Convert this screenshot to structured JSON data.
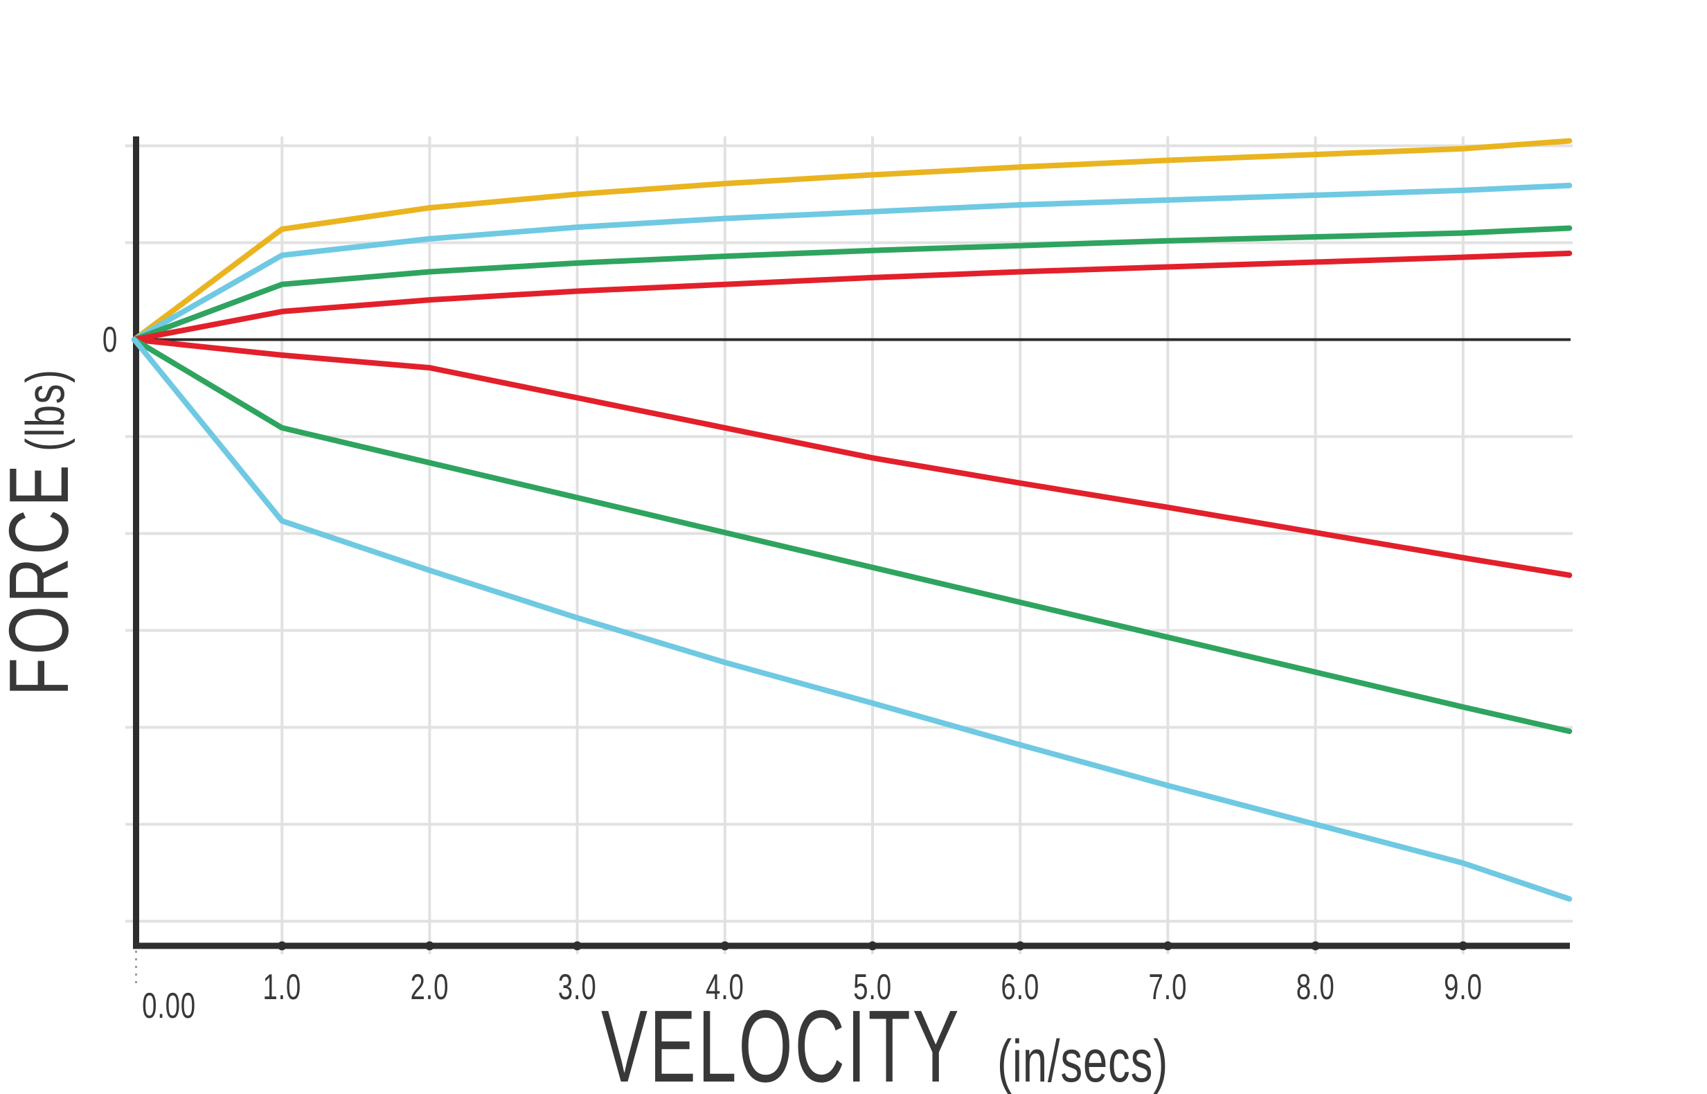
{
  "page": {
    "background": "#ffffff"
  },
  "chart_data": {
    "type": "line",
    "title": "",
    "xlabel": "VELOCITY",
    "xlabel_unit": "(in/secs)",
    "ylabel": "FORCE",
    "ylabel_unit": "(lbs)",
    "y_zero_label": "0",
    "origin_tick_label": "0.00",
    "x_tick_labels": [
      "1.0",
      "2.0",
      "3.0",
      "4.0",
      "5.0",
      "6.0",
      "7.0",
      "8.0",
      "9.0"
    ],
    "x_tick_values": [
      1,
      2,
      3,
      4,
      5,
      6,
      7,
      8,
      9
    ],
    "x_range": [
      0,
      9.72
    ],
    "y_range_grid_units": [
      -6.3,
      2.6
    ],
    "y_gridline_unit_values": [
      2,
      1,
      -1,
      -2,
      -3,
      -4,
      -5,
      -6
    ],
    "y_gridlines_labeled": false,
    "grid": true,
    "legend": false,
    "x": [
      0,
      1,
      2,
      3,
      4,
      5,
      6,
      7,
      8,
      9,
      9.72
    ],
    "series": [
      {
        "name": "yellow-upper",
        "color": "#E9B41F",
        "y": [
          0,
          1.14,
          1.36,
          1.5,
          1.61,
          1.7,
          1.78,
          1.85,
          1.91,
          1.97,
          2.05
        ]
      },
      {
        "name": "cyan-upper",
        "color": "#6FC9E2",
        "y": [
          0,
          0.87,
          1.04,
          1.16,
          1.25,
          1.32,
          1.39,
          1.44,
          1.49,
          1.54,
          1.59
        ]
      },
      {
        "name": "green-upper",
        "color": "#2EA45F",
        "y": [
          0,
          0.57,
          0.7,
          0.79,
          0.86,
          0.92,
          0.97,
          1.02,
          1.06,
          1.1,
          1.15
        ]
      },
      {
        "name": "red-upper",
        "color": "#E2202B",
        "y": [
          0,
          0.29,
          0.41,
          0.5,
          0.57,
          0.64,
          0.7,
          0.75,
          0.8,
          0.85,
          0.89
        ]
      },
      {
        "name": "red-lower",
        "color": "#E2202B",
        "y": [
          0,
          -0.16,
          -0.29,
          -0.6,
          -0.91,
          -1.22,
          -1.48,
          -1.73,
          -1.99,
          -2.25,
          -2.43
        ]
      },
      {
        "name": "green-lower",
        "color": "#2EA45F",
        "y": [
          0,
          -0.91,
          -1.27,
          -1.63,
          -1.99,
          -2.35,
          -2.71,
          -3.07,
          -3.43,
          -3.79,
          -4.04
        ]
      },
      {
        "name": "cyan-lower",
        "color": "#6FC9E2",
        "y": [
          0,
          -1.87,
          -2.38,
          -2.87,
          -3.33,
          -3.75,
          -4.18,
          -4.6,
          -5.0,
          -5.4,
          -5.77
        ]
      }
    ]
  },
  "style": {
    "axis_color": "#2e2e2e",
    "zero_line_color": "#2b2b2b",
    "grid_color": "#e1e1e1",
    "text_color": "#383838",
    "leader_color": "#9a9a9a"
  }
}
